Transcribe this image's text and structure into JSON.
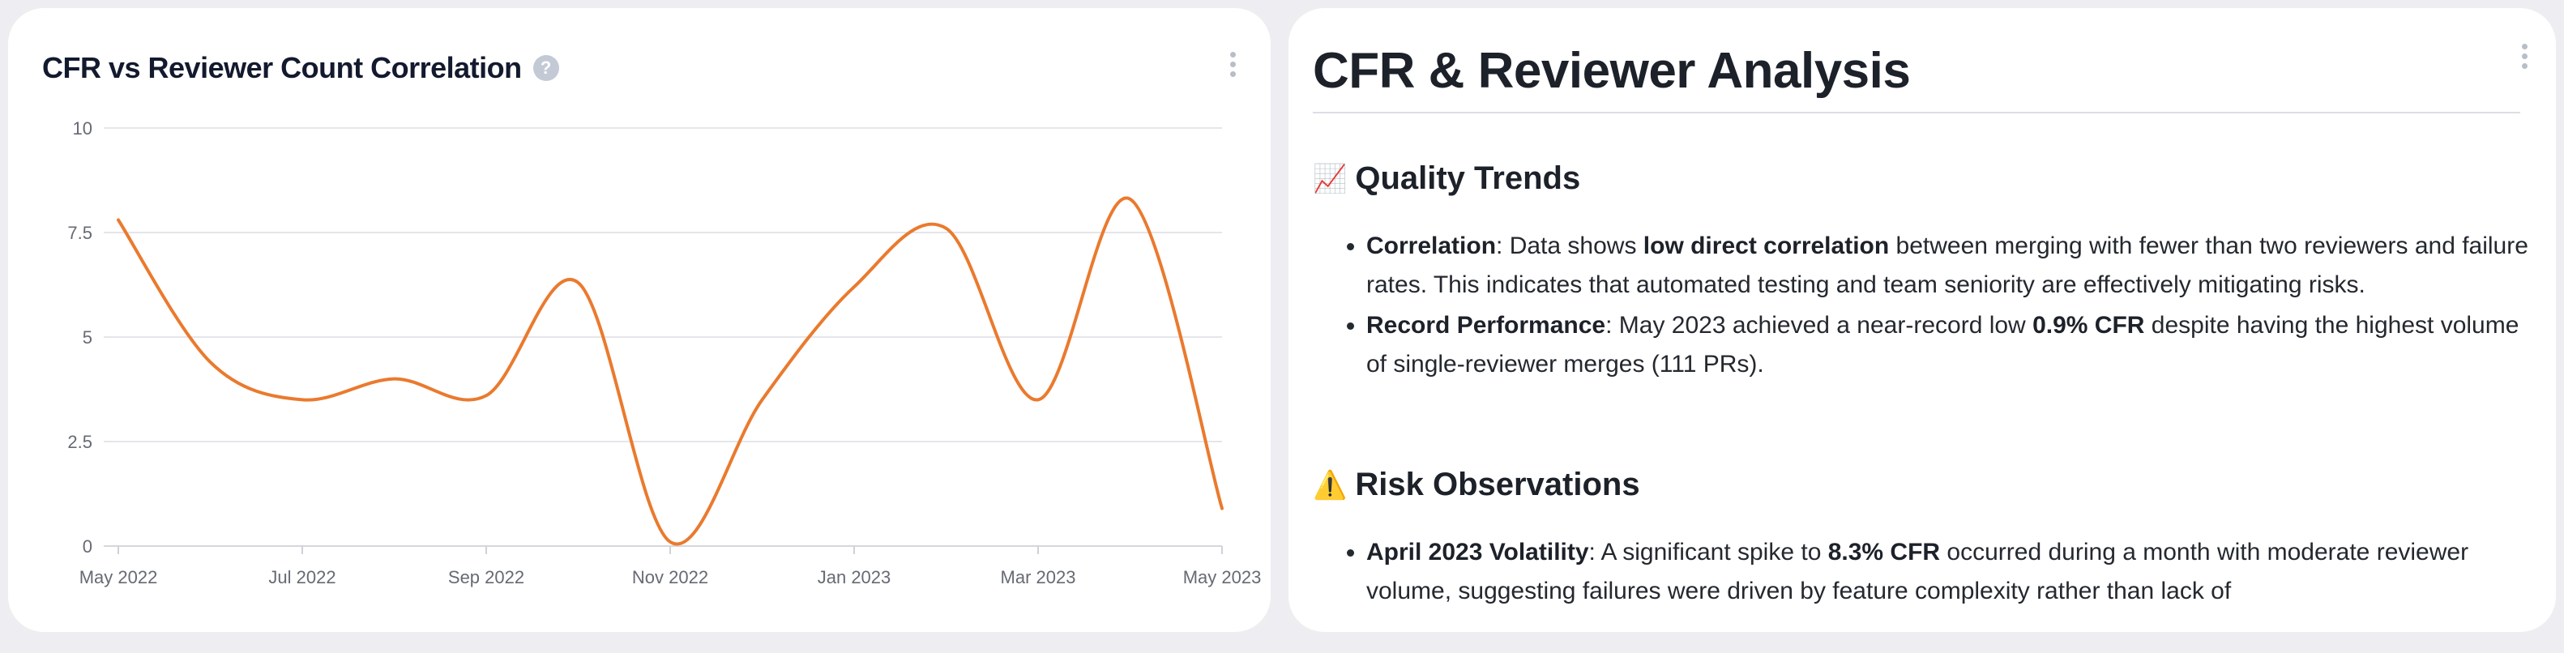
{
  "chart_card": {
    "title": "CFR vs Reviewer Count Correlation",
    "help_icon": "question-circle-icon",
    "menu_icon": "kebab-vertical-icon"
  },
  "chart_data": {
    "type": "line",
    "x": [
      "2022-05",
      "2022-06",
      "2022-07",
      "2022-08",
      "2022-09",
      "2022-10",
      "2022-11",
      "2022-12",
      "2023-01",
      "2023-02",
      "2023-03",
      "2023-04",
      "2023-05"
    ],
    "series": [
      {
        "values": [
          7.8,
          4.4,
          3.5,
          4.0,
          3.6,
          6.3,
          0.1,
          3.5,
          6.2,
          7.6,
          3.5,
          8.3,
          0.9
        ],
        "color": "#ea7a2e"
      }
    ],
    "x_tick_labels": [
      "May 2022",
      "Jul 2022",
      "Sep 2022",
      "Nov 2022",
      "Jan 2023",
      "Mar 2023",
      "May 2023"
    ],
    "y_ticks": [
      0,
      2.5,
      5,
      7.5,
      10
    ],
    "y_tick_labels": [
      "0",
      "2.5",
      "5",
      "7.5",
      "10"
    ],
    "ylim": [
      0,
      10
    ],
    "grid": true,
    "legend": "none"
  },
  "report": {
    "title": "CFR & Reviewer Analysis",
    "menu_icon": "kebab-vertical-icon",
    "quality": {
      "icon": "chart-increasing-icon",
      "icon_glyph": "📈",
      "heading": "Quality Trends",
      "items": [
        {
          "label": "Correlation",
          "t1": ": Data shows ",
          "b1": "low direct correlation",
          "t2": " between merging with fewer than two reviewers and failure rates. This indicates that automated testing and team seniority are effectively mitigating risks."
        },
        {
          "label": "Record Performance",
          "t1": ": May 2023 achieved a near-record low ",
          "b1": "0.9% CFR",
          "t2": " despite having the highest volume of single-reviewer merges (111 PRs)."
        }
      ]
    },
    "risk": {
      "icon": "warning-icon",
      "icon_glyph": "⚠️",
      "heading": "Risk Observations",
      "items": [
        {
          "label": "April 2023 Volatility",
          "t1": ": A significant spike to ",
          "b1": "8.3% CFR",
          "t2": " occurred during a month with moderate reviewer volume, suggesting failures were driven by feature complexity rather than lack of"
        }
      ]
    }
  }
}
